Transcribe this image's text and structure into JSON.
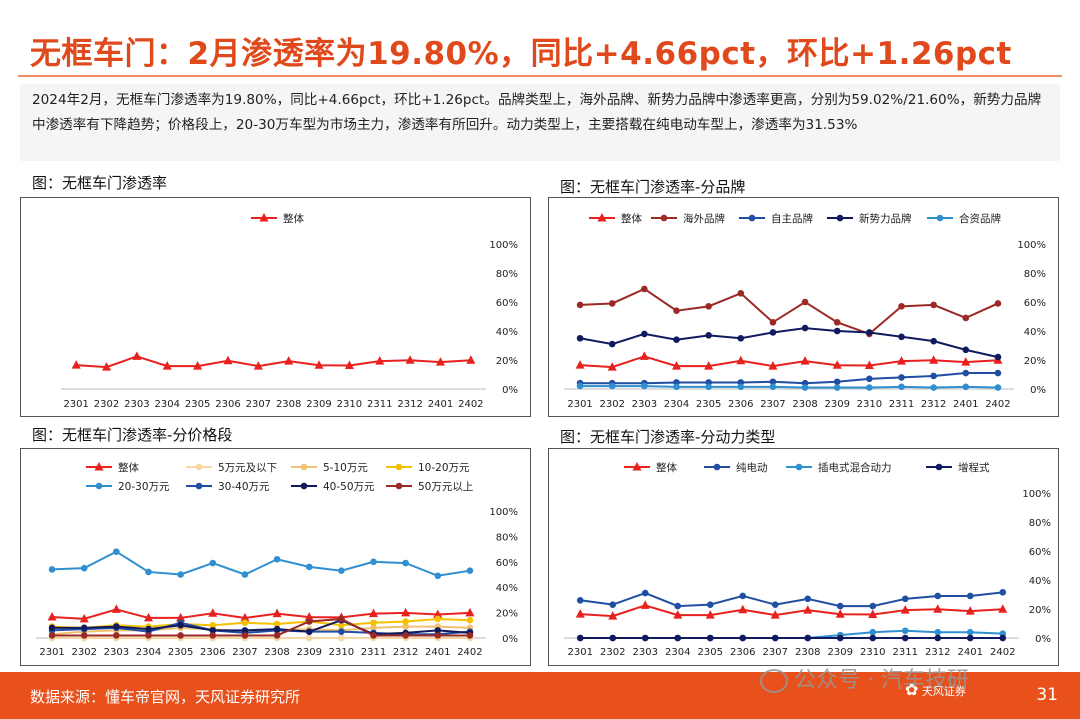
{
  "header": {
    "title": "无框车门：2月渗透率为19.80%，同比+4.66pct，环比+1.26pct",
    "summary": "2024年2月，无框车门渗透率为19.80%，同比+4.66pct，环比+1.26pct。品牌类型上，海外品牌、新势力品牌中渗透率更高，分别为59.02%/21.60%，新势力品牌中渗透率有下降趋势；价格段上，20-30万车型为市场主力，渗透率有所回升。动力类型上，主要搭载在纯电动车型上，渗透率为31.53%"
  },
  "figures": {
    "f1": "图：无框车门渗透率",
    "f2": "图：无框车门渗透率-分品牌",
    "f3": "图：无框车门渗透率-分价格段",
    "f4": "图：无框车门渗透率-分动力类型"
  },
  "footer": {
    "source": "数据来源：懂车帝官网，天风证券研究所",
    "page": "31",
    "watermark": "公众号 · 汽车技研",
    "logo_text": "天风证券"
  },
  "chart_data": [
    {
      "type": "line",
      "categories": [
        "2301",
        "2302",
        "2303",
        "2304",
        "2305",
        "2306",
        "2307",
        "2308",
        "2309",
        "2310",
        "2311",
        "2312",
        "2401",
        "2402"
      ],
      "ylim": [
        0,
        100
      ],
      "yticks": [
        "0%",
        "20%",
        "40%",
        "60%",
        "80%",
        "100%"
      ],
      "legend_position": "top",
      "series": [
        {
          "name": "整体",
          "color": "#e8201e",
          "marker": "triangle",
          "values": [
            16.5,
            15.1,
            22.5,
            15.8,
            15.8,
            19.5,
            15.8,
            19.2,
            16.4,
            16.2,
            19.2,
            19.8,
            18.5,
            19.8
          ]
        }
      ]
    },
    {
      "type": "line",
      "categories": [
        "2301",
        "2302",
        "2303",
        "2304",
        "2305",
        "2306",
        "2307",
        "2308",
        "2309",
        "2310",
        "2311",
        "2312",
        "2401",
        "2402"
      ],
      "ylim": [
        0,
        100
      ],
      "yticks": [
        "0%",
        "20%",
        "40%",
        "60%",
        "80%",
        "100%"
      ],
      "legend_position": "top",
      "series": [
        {
          "name": "整体",
          "color": "#e8201e",
          "marker": "triangle",
          "values": [
            16.5,
            15.1,
            22.5,
            15.8,
            15.8,
            19.5,
            15.8,
            19.2,
            16.4,
            16.2,
            19.2,
            19.8,
            18.5,
            19.8
          ]
        },
        {
          "name": "海外品牌",
          "color": "#9b2a26",
          "marker": "circle",
          "values": [
            58,
            59,
            69,
            54,
            57,
            66,
            46,
            60,
            46,
            38,
            57,
            58,
            49,
            59
          ]
        },
        {
          "name": "自主品牌",
          "color": "#1f4ea3",
          "marker": "circle",
          "values": [
            4,
            4,
            4,
            4.5,
            4.5,
            4.5,
            5,
            4,
            5,
            7,
            8,
            9,
            11,
            11
          ]
        },
        {
          "name": "新势力品牌",
          "color": "#101a5e",
          "marker": "circle",
          "values": [
            35,
            31,
            38,
            34,
            37,
            35,
            39,
            42,
            40,
            39,
            36,
            33,
            27,
            22
          ]
        },
        {
          "name": "合资品牌",
          "color": "#2f8fd0",
          "marker": "circle",
          "values": [
            2,
            2,
            2,
            1.5,
            1.5,
            1.5,
            1.5,
            1,
            1,
            1,
            1.5,
            1,
            1.5,
            1
          ]
        }
      ]
    },
    {
      "type": "line",
      "categories": [
        "2301",
        "2302",
        "2303",
        "2304",
        "2305",
        "2306",
        "2307",
        "2308",
        "2309",
        "2310",
        "2311",
        "2312",
        "2401",
        "2402"
      ],
      "ylim": [
        0,
        100
      ],
      "yticks": [
        "0%",
        "20%",
        "40%",
        "60%",
        "80%",
        "100%"
      ],
      "legend_position": "top",
      "series": [
        {
          "name": "整体",
          "color": "#e8201e",
          "marker": "triangle",
          "values": [
            16.5,
            15.1,
            22.5,
            15.8,
            15.8,
            19.5,
            15.8,
            19.2,
            16.4,
            16.2,
            19.2,
            19.8,
            18.5,
            19.8
          ]
        },
        {
          "name": "5万元及以下",
          "color": "#f6d7a2",
          "marker": "circle",
          "values": [
            0,
            0,
            0,
            0,
            0,
            0,
            0,
            0,
            0,
            0,
            0,
            0,
            0,
            0
          ]
        },
        {
          "name": "5-10万元",
          "color": "#f1c070",
          "marker": "circle",
          "values": [
            3,
            5,
            6,
            6,
            8,
            7,
            5,
            6,
            7,
            6,
            8,
            9,
            9,
            8
          ]
        },
        {
          "name": "10-20万元",
          "color": "#f5c000",
          "marker": "circle",
          "values": [
            9,
            8,
            10,
            9,
            11,
            10,
            12,
            11,
            13,
            10,
            12,
            13,
            15,
            14
          ]
        },
        {
          "name": "20-30万元",
          "color": "#2f8fd0",
          "marker": "circle",
          "values": [
            54,
            55,
            68,
            52,
            50,
            59,
            50,
            62,
            56,
            53,
            60,
            59,
            49,
            53
          ]
        },
        {
          "name": "30-40万元",
          "color": "#1f4ea3",
          "marker": "circle",
          "values": [
            6,
            7,
            8,
            5,
            12,
            6,
            4,
            6,
            5,
            5,
            4,
            3,
            3,
            5
          ]
        },
        {
          "name": "40-50万元",
          "color": "#101a5e",
          "marker": "circle",
          "values": [
            8,
            8,
            9,
            7,
            10,
            6,
            6,
            7,
            5,
            14,
            3,
            4,
            6,
            4
          ]
        },
        {
          "name": "50万元以上",
          "color": "#9b2a26",
          "marker": "circle",
          "values": [
            2,
            2,
            2,
            2,
            2,
            2,
            2,
            2,
            13,
            15,
            2,
            2,
            2,
            2
          ]
        }
      ]
    },
    {
      "type": "line",
      "categories": [
        "2301",
        "2302",
        "2303",
        "2304",
        "2305",
        "2306",
        "2307",
        "2308",
        "2309",
        "2310",
        "2311",
        "2312",
        "2401",
        "2402"
      ],
      "ylim": [
        0,
        100
      ],
      "yticks": [
        "0%",
        "20%",
        "40%",
        "60%",
        "80%",
        "100%"
      ],
      "legend_position": "top",
      "series": [
        {
          "name": "整体",
          "color": "#e8201e",
          "marker": "triangle",
          "values": [
            16.5,
            15.1,
            22.5,
            15.8,
            15.8,
            19.5,
            15.8,
            19.2,
            16.4,
            16.2,
            19.2,
            19.8,
            18.5,
            19.8
          ]
        },
        {
          "name": "纯电动",
          "color": "#1f4ea3",
          "marker": "circle",
          "values": [
            26,
            23,
            31,
            22,
            23,
            29,
            23,
            27,
            22,
            22,
            27,
            29,
            29,
            31.5
          ]
        },
        {
          "name": "插电式混合动力",
          "color": "#2f8fd0",
          "marker": "circle",
          "values": [
            0,
            0,
            0,
            0,
            0,
            0,
            0,
            0,
            2,
            4,
            5,
            4,
            4,
            3
          ]
        },
        {
          "name": "增程式",
          "color": "#101a5e",
          "marker": "circle",
          "values": [
            0,
            0,
            0,
            0,
            0,
            0,
            0,
            0,
            0,
            0,
            0,
            0,
            0,
            0
          ]
        }
      ]
    }
  ]
}
